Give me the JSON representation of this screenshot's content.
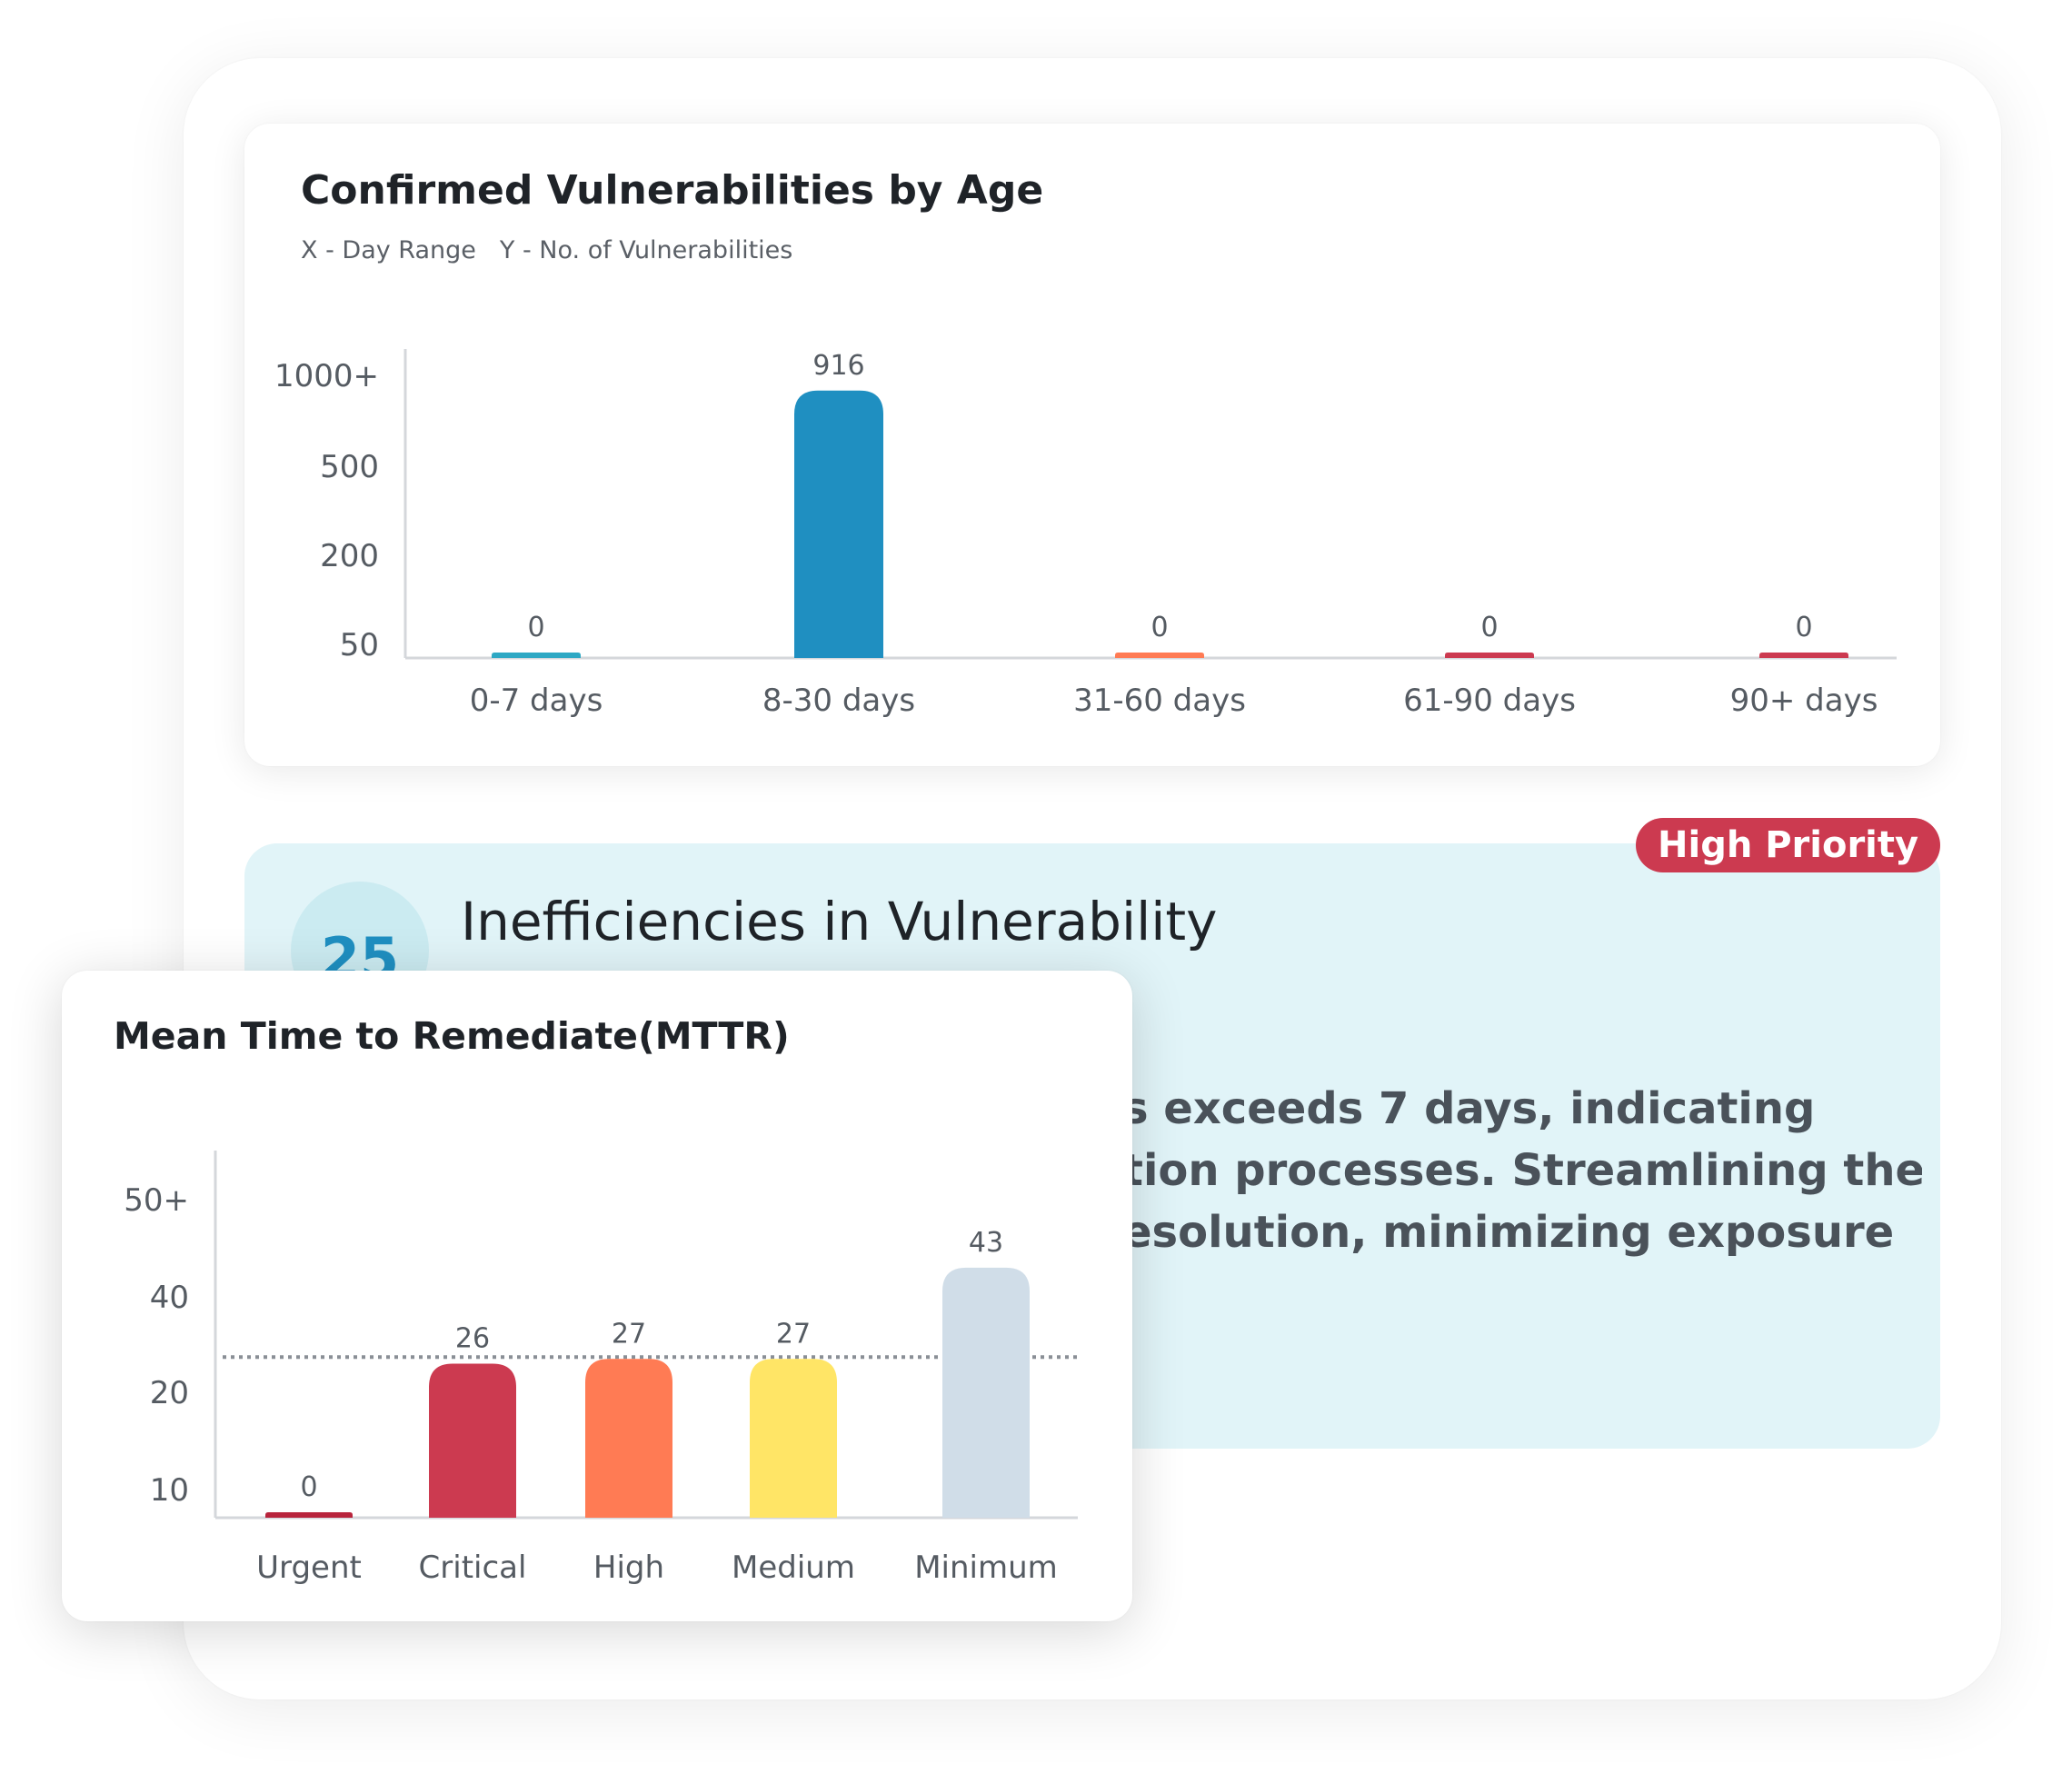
{
  "age_card": {
    "title": "Confirmed Vulnerabilities by Age",
    "x_axis_note": "X - Day Range",
    "y_axis_note": "Y - No. of Vulnerabilities"
  },
  "insight": {
    "number": "25",
    "title": "Inefficiencies in Vulnerability",
    "badge": "High Priority",
    "body_lines": [
      "s exceeds 7 days, indicating",
      "tion processes. Streamlining these",
      "esolution, minimizing exposure"
    ]
  },
  "mttr_card": {
    "title": "Mean Time to Remediate(MTTR)"
  },
  "chart_data": [
    {
      "type": "bar",
      "title": "Confirmed Vulnerabilities by Age",
      "xlabel": "Day Range",
      "ylabel": "No. of Vulnerabilities",
      "categories": [
        "0-7 days",
        "8-30 days",
        "31-60 days",
        "61-90 days",
        "90+ days"
      ],
      "values": [
        0,
        916,
        0,
        0,
        0
      ],
      "data_labels": [
        "0",
        "916",
        "0",
        "0",
        "0"
      ],
      "y_tick_labels": [
        "50",
        "200",
        "500",
        "1000+"
      ],
      "y_tick_values": [
        50,
        200,
        500,
        1000
      ],
      "colors": [
        "#2ea8c4",
        "#1f8fc1",
        "#ff7b54",
        "#cc3a50",
        "#cc3a50"
      ],
      "grid": false,
      "legend": "none"
    },
    {
      "type": "bar",
      "title": "Mean Time to Remediate(MTTR)",
      "categories": [
        "Urgent",
        "Critical",
        "High",
        "Medium",
        "Minimum"
      ],
      "values": [
        0,
        26,
        27,
        27,
        43
      ],
      "data_labels": [
        "0",
        "26",
        "27",
        "27",
        "43"
      ],
      "y_tick_labels": [
        "10",
        "20",
        "40",
        "50+"
      ],
      "y_tick_values": [
        10,
        20,
        40,
        50
      ],
      "reference_line": 27,
      "colors": [
        "#b8243c",
        "#cc3a50",
        "#ff7b54",
        "#ffe566",
        "#d0dde8"
      ],
      "grid": false,
      "legend": "none"
    }
  ]
}
